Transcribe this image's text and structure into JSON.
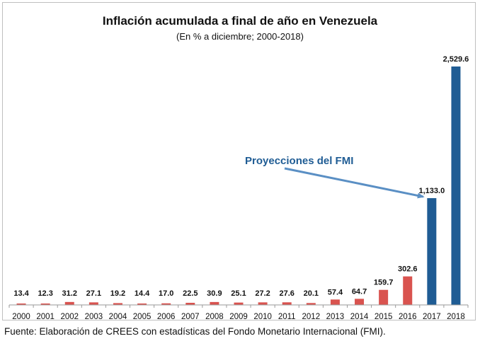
{
  "chart_data": {
    "type": "bar",
    "title": "Inflación acumulada a final de año en Venezuela",
    "subtitle": "(En % a diciembre; 2000-2018)",
    "categories": [
      "2000",
      "2001",
      "2002",
      "2003",
      "2004",
      "2005",
      "2006",
      "2007",
      "2008",
      "2009",
      "2010",
      "2011",
      "2012",
      "2013",
      "2014",
      "2015",
      "2016",
      "2017",
      "2018"
    ],
    "values": [
      13.4,
      12.3,
      31.2,
      27.1,
      19.2,
      14.4,
      17.0,
      22.5,
      30.9,
      25.1,
      27.2,
      27.6,
      20.1,
      57.4,
      64.7,
      159.7,
      302.6,
      1133.0,
      2529.6
    ],
    "data_labels": [
      "13.4",
      "12.3",
      "31.2",
      "27.1",
      "19.2",
      "14.4",
      "17.0",
      "22.5",
      "30.9",
      "25.1",
      "27.2",
      "27.6",
      "20.1",
      "57.4",
      "64.7",
      "159.7",
      "302.6",
      "1,133.0",
      "2,529.6"
    ],
    "projected": [
      false,
      false,
      false,
      false,
      false,
      false,
      false,
      false,
      false,
      false,
      false,
      false,
      false,
      false,
      false,
      false,
      false,
      true,
      true
    ],
    "ylim": [
      0,
      2529.6
    ],
    "grid": false,
    "colors": {
      "actual": "#d9534f",
      "projected": "#1f5c94",
      "annotation": "#1f5c94",
      "arrow": "#5a8fc4"
    },
    "annotation": {
      "text": "Proyecciones del FMI",
      "target": "2017"
    },
    "source": "Fuente: Elaboración de CREES con estadísticas del Fondo Monetario Internacional (FMI)."
  }
}
